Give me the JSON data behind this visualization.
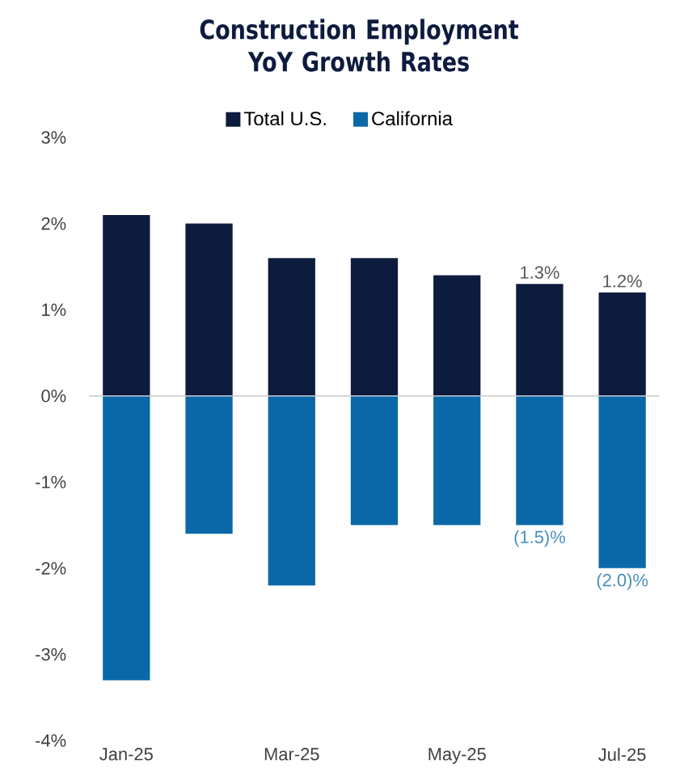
{
  "chart_data": {
    "type": "bar",
    "title": "Construction Employment YoY Growth Rates",
    "categories": [
      "Jan-25",
      null,
      "Mar-25",
      null,
      "May-25",
      null,
      "Jul-25"
    ],
    "series": [
      {
        "name": "Total U.S.",
        "color": "#0d1b3e",
        "values": [
          2.1,
          2.0,
          1.6,
          1.6,
          1.4,
          1.3,
          1.2
        ],
        "value_labels": [
          null,
          null,
          null,
          null,
          null,
          "1.3%",
          "1.2%"
        ]
      },
      {
        "name": "California",
        "color": "#0a68a8",
        "values": [
          -3.3,
          -1.6,
          -2.2,
          -1.5,
          -1.5,
          -1.5,
          -2.0
        ],
        "value_labels": [
          null,
          null,
          null,
          null,
          null,
          "(1.5)%",
          "(2.0)%"
        ]
      }
    ],
    "ylim": [
      -4,
      3
    ],
    "yticks": [
      {
        "value": -4,
        "label": "-4%"
      },
      {
        "value": -3,
        "label": "-3%"
      },
      {
        "value": -2,
        "label": "-2%"
      },
      {
        "value": -1,
        "label": "-1%"
      },
      {
        "value": 0,
        "label": "0%"
      },
      {
        "value": 1,
        "label": "1%"
      },
      {
        "value": 2,
        "label": "2%"
      },
      {
        "value": 3,
        "label": "3%"
      }
    ],
    "stacked": true,
    "ref_lines": [
      {
        "axis": "y",
        "value": 0,
        "color": "#c8c8c8"
      }
    ],
    "legend": "top",
    "grid": false
  }
}
